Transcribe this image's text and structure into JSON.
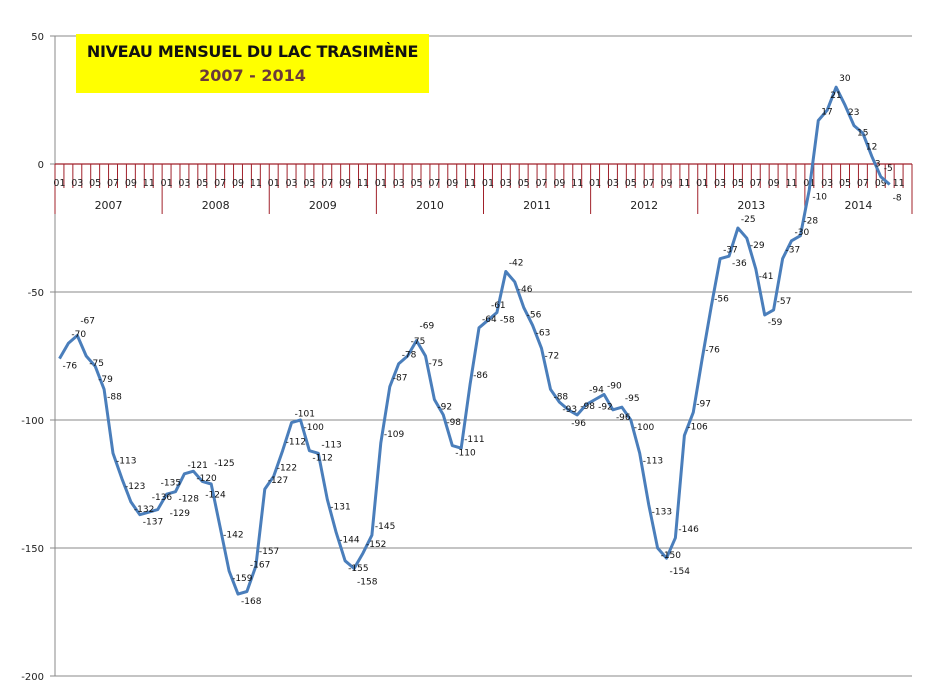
{
  "chart_data": {
    "type": "line",
    "title": "NIVEAU MENSUEL DU LAC TRASIMÈNE",
    "subtitle": "2007 - 2014",
    "xlabel": "",
    "ylabel": "",
    "ylim": [
      -200,
      50
    ],
    "y_ticks": [
      50,
      0,
      -50,
      -100,
      -150,
      -200
    ],
    "grid": true,
    "legend": "none",
    "years": [
      "2007",
      "2008",
      "2009",
      "2010",
      "2011",
      "2012",
      "2013",
      "2014"
    ],
    "month_tick_labels": [
      "01",
      "03",
      "05",
      "07",
      "09",
      "11"
    ],
    "line_color": "#4a7ebb",
    "axis_color": "#a0202a",
    "series": [
      {
        "name": "Niveau",
        "values": [
          -76,
          -70,
          -67,
          -75,
          -79,
          -88,
          -113,
          -123,
          -132,
          -137,
          -136,
          -135,
          -129,
          -128,
          -121,
          -120,
          -124,
          -125,
          -142,
          -159,
          -168,
          -167,
          -157,
          -127,
          -122,
          -112,
          -101,
          -100,
          -112,
          -113,
          -131,
          -144,
          -155,
          -158,
          -152,
          -145,
          -109,
          -87,
          -78,
          -75,
          -69,
          -75,
          -92,
          -98,
          -110,
          -111,
          -86,
          -64,
          -61,
          -58,
          -42,
          -46,
          -56,
          -63,
          -72,
          -88,
          -93,
          -96,
          -98,
          -94,
          -92,
          -90,
          -96,
          -95,
          -100,
          -113,
          -133,
          -150,
          -154,
          -146,
          -106,
          -97,
          -76,
          -56,
          -37,
          -36,
          -25,
          -29,
          -41,
          -59,
          -57,
          -37,
          -30,
          -28,
          -10,
          17,
          21,
          30,
          23,
          15,
          12,
          3,
          -5,
          -8
        ]
      }
    ]
  }
}
